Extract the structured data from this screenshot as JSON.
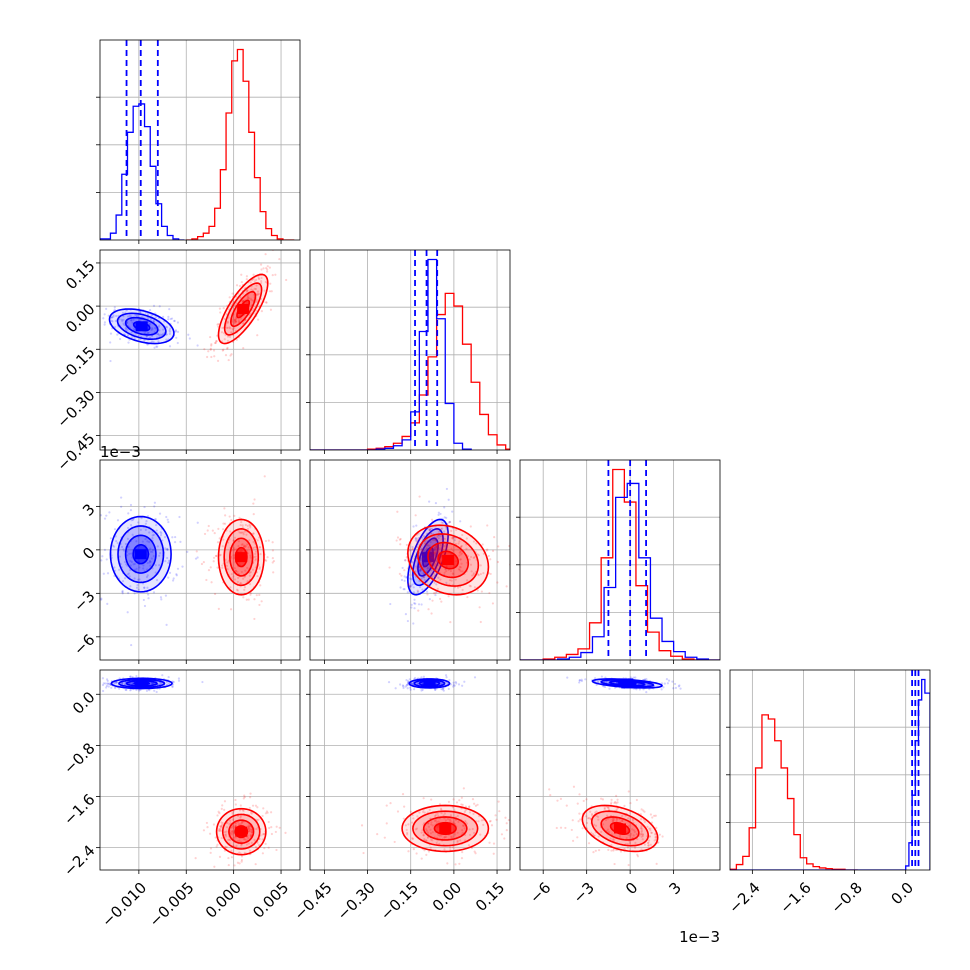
{
  "chart_data": {
    "type": "corner",
    "series": [
      {
        "name": "",
        "color": "#0000ff",
        "quantile_lines": true
      },
      {
        "name": "",
        "color": "#ff0000",
        "quantile_lines": false
      }
    ],
    "parameters": [
      {
        "index": 0,
        "range": [
          -0.0141,
          0.007
        ],
        "ticks": [
          -0.01,
          -0.005,
          0.0,
          0.005
        ],
        "tick_labels": [
          "−0.010",
          "−0.005",
          "0.000",
          "0.005"
        ],
        "offset_text": ""
      },
      {
        "index": 1,
        "range": [
          -0.5,
          0.195
        ],
        "ticks": [
          -0.45,
          -0.3,
          -0.15,
          0.0,
          0.15
        ],
        "tick_labels": [
          "−0.45",
          "−0.30",
          "−0.15",
          "0.00",
          "0.15"
        ],
        "offset_text": ""
      },
      {
        "index": 2,
        "range": [
          -0.0076,
          0.0062
        ],
        "ticks": [
          -0.006,
          -0.003,
          0.0,
          0.003
        ],
        "tick_labels": [
          "−6",
          "−3",
          "0",
          "3"
        ],
        "offset_text": "1e−3"
      },
      {
        "index": 3,
        "range": [
          -2.75,
          0.38
        ],
        "ticks": [
          -2.4,
          -1.6,
          -0.8,
          0.0
        ],
        "tick_labels": [
          "−2.4",
          "−1.6",
          "−0.8",
          "0.0"
        ],
        "offset_text": ""
      }
    ],
    "marginals": [
      {
        "parameter": 0,
        "quantiles_blue": [
          -0.0113,
          -0.0098,
          -0.008
        ],
        "blue": {
          "edges": [
            -0.0141,
            -0.013,
            -0.0124,
            -0.0118,
            -0.0112,
            -0.0106,
            -0.01,
            -0.0094,
            -0.0088,
            -0.0082,
            -0.0076,
            -0.007,
            -0.0064,
            -0.0058,
            -0.0052
          ],
          "counts": [
            1,
            6,
            22,
            58,
            95,
            118,
            120,
            100,
            65,
            32,
            12,
            4,
            1,
            0
          ]
        },
        "red": {
          "edges": [
            -0.005,
            -0.0044,
            -0.0038,
            -0.0032,
            -0.0026,
            -0.002,
            -0.0014,
            -0.0008,
            -0.0002,
            0.0004,
            0.001,
            0.0016,
            0.0022,
            0.0028,
            0.0034,
            0.004,
            0.0046,
            0.0052,
            0.0058,
            0.0064
          ],
          "counts": [
            0,
            1,
            3,
            6,
            12,
            28,
            62,
            112,
            158,
            168,
            140,
            95,
            55,
            25,
            10,
            4,
            1,
            0,
            0
          ]
        }
      },
      {
        "parameter": 1,
        "quantiles_blue": [
          -0.135,
          -0.095,
          -0.058
        ],
        "blue": {
          "edges": [
            -0.5,
            -0.45,
            -0.42,
            -0.39,
            -0.36,
            -0.33,
            -0.3,
            -0.27,
            -0.24,
            -0.21,
            -0.18,
            -0.15,
            -0.12,
            -0.09,
            -0.06,
            -0.03,
            0.0,
            0.03,
            0.06
          ],
          "counts": [
            0,
            0,
            0,
            0,
            0,
            0,
            0,
            1,
            2,
            5,
            12,
            45,
            140,
            225,
            155,
            55,
            8,
            1
          ]
        },
        "red": {
          "edges": [
            -0.5,
            -0.3,
            -0.27,
            -0.24,
            -0.21,
            -0.18,
            -0.15,
            -0.12,
            -0.09,
            -0.06,
            -0.03,
            0.0,
            0.03,
            0.06,
            0.09,
            0.12,
            0.15,
            0.18,
            0.195
          ],
          "counts": [
            0,
            1,
            2,
            4,
            8,
            16,
            32,
            65,
            110,
            160,
            185,
            170,
            125,
            80,
            42,
            18,
            6,
            1
          ]
        }
      },
      {
        "parameter": 2,
        "quantiles_blue": [
          -0.0015,
          0.0,
          0.0011
        ],
        "blue": {
          "edges": [
            -0.0076,
            -0.005,
            -0.0042,
            -0.0034,
            -0.0026,
            -0.0018,
            -0.001,
            -0.0002,
            0.0006,
            0.0014,
            0.0022,
            0.003,
            0.0038,
            0.0046,
            0.0054,
            0.0062
          ],
          "counts": [
            0,
            1,
            3,
            8,
            25,
            78,
            175,
            190,
            110,
            45,
            20,
            9,
            3,
            1,
            0
          ]
        },
        "red": {
          "edges": [
            -0.0076,
            -0.006,
            -0.0052,
            -0.0044,
            -0.0036,
            -0.0028,
            -0.002,
            -0.0012,
            -0.0004,
            0.0004,
            0.0012,
            0.002,
            0.0028,
            0.0036,
            0.0044,
            0.0052,
            0.0062
          ],
          "counts": [
            0,
            1,
            3,
            6,
            12,
            40,
            110,
            205,
            170,
            80,
            30,
            10,
            4,
            1,
            0,
            0
          ]
        }
      },
      {
        "parameter": 3,
        "quantiles_blue": [
          0.1,
          0.15,
          0.2
        ],
        "blue": {
          "edges": [
            -2.75,
            0.0,
            0.05,
            0.1,
            0.15,
            0.2,
            0.25,
            0.3,
            0.38
          ],
          "counts": [
            0,
            6,
            40,
            110,
            190,
            250,
            280,
            260
          ]
        },
        "red": {
          "edges": [
            -2.75,
            -2.65,
            -2.55,
            -2.45,
            -2.35,
            -2.25,
            -2.15,
            -2.05,
            -1.95,
            -1.85,
            -1.75,
            -1.65,
            -1.55,
            -1.45,
            -1.35,
            -1.25,
            -1.15,
            -1.05,
            -0.95,
            -0.85,
            -0.75
          ],
          "counts": [
            1,
            8,
            20,
            62,
            150,
            228,
            222,
            190,
            150,
            105,
            52,
            18,
            9,
            5,
            3,
            2,
            1,
            1,
            0,
            0
          ]
        }
      }
    ],
    "joint": [
      {
        "x": 0,
        "y": 1,
        "blue": {
          "center": [
            -0.0097,
            -0.07
          ],
          "sd": [
            0.0017,
            0.03
          ],
          "corr": -0.4
        },
        "red": {
          "center": [
            0.001,
            -0.01
          ],
          "sd": [
            0.0013,
            0.06
          ],
          "corr": 0.75
        }
      },
      {
        "x": 0,
        "y": 2,
        "blue": {
          "center": [
            -0.0098,
            -0.0003
          ],
          "sd": [
            0.0016,
            0.0013
          ],
          "corr": 0.0
        },
        "red": {
          "center": [
            0.0008,
            -0.0005
          ],
          "sd": [
            0.0012,
            0.0013
          ],
          "corr": 0.0
        }
      },
      {
        "x": 0,
        "y": 3,
        "blue": {
          "center": [
            -0.0097,
            0.17
          ],
          "sd": [
            0.0016,
            0.04
          ],
          "corr": 0.0
        },
        "red": {
          "center": [
            0.0008,
            -2.15
          ],
          "sd": [
            0.0013,
            0.18
          ],
          "corr": 0.0
        }
      },
      {
        "x": 1,
        "y": 2,
        "blue": {
          "center": [
            -0.09,
            -0.0005
          ],
          "sd": [
            0.035,
            0.0013
          ],
          "corr": 0.6
        },
        "red": {
          "center": [
            -0.02,
            -0.0007
          ],
          "sd": [
            0.07,
            0.0012
          ],
          "corr": -0.2
        }
      },
      {
        "x": 1,
        "y": 3,
        "blue": {
          "center": [
            -0.085,
            0.17
          ],
          "sd": [
            0.035,
            0.035
          ],
          "corr": 0.0
        },
        "red": {
          "center": [
            -0.03,
            -2.1
          ],
          "sd": [
            0.075,
            0.18
          ],
          "corr": 0.0
        }
      },
      {
        "x": 2,
        "y": 3,
        "blue": {
          "center": [
            -0.0002,
            0.17
          ],
          "sd": [
            0.0012,
            0.035
          ],
          "corr": -0.5
        },
        "red": {
          "center": [
            -0.0007,
            -2.1
          ],
          "sd": [
            0.0013,
            0.18
          ],
          "corr": -0.4
        }
      }
    ],
    "grid": true
  }
}
